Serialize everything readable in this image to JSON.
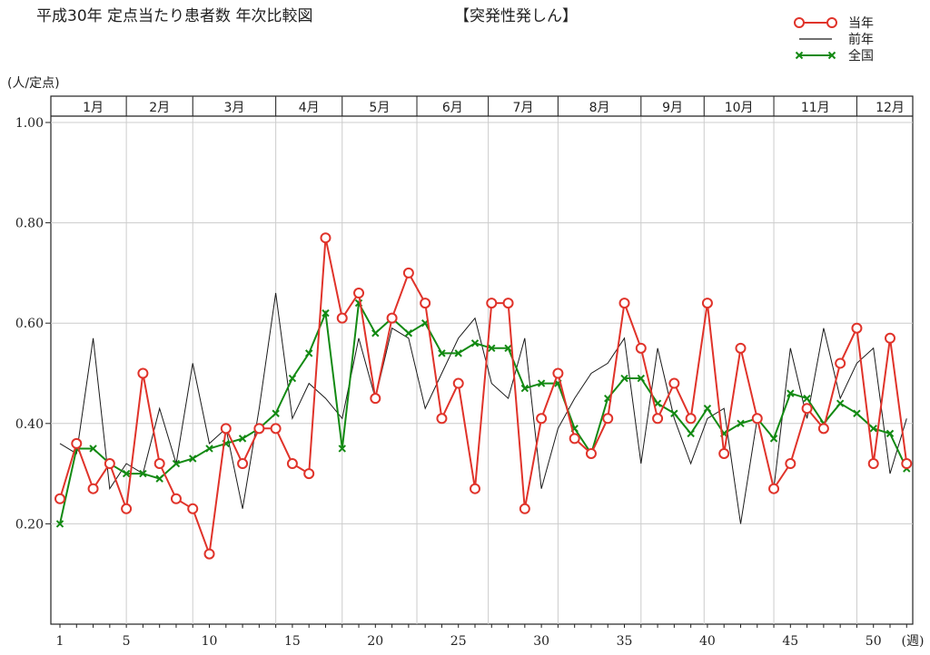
{
  "chart_data": {
    "type": "line",
    "title": "平成30年 定点当たり患者数 年次比較図",
    "subtitle": "【突発性発しん】",
    "ylabel": "(人/定点)",
    "xlabel_suffix": "(週)",
    "ylim": [
      0,
      1.1
    ],
    "xlim": [
      1,
      53
    ],
    "grid": true,
    "legend_position": "top-right",
    "y_ticks": [
      {
        "value": 0.2,
        "label": "0.20"
      },
      {
        "value": 0.4,
        "label": "0.40"
      },
      {
        "value": 0.6,
        "label": "0.60"
      },
      {
        "value": 0.8,
        "label": "0.80"
      },
      {
        "value": 1.0,
        "label": "1.00"
      }
    ],
    "x_ticks": [
      {
        "value": 1,
        "label": "1"
      },
      {
        "value": 5,
        "label": "5"
      },
      {
        "value": 10,
        "label": "10"
      },
      {
        "value": 15,
        "label": "15"
      },
      {
        "value": 20,
        "label": "20"
      },
      {
        "value": 25,
        "label": "25"
      },
      {
        "value": 30,
        "label": "30"
      },
      {
        "value": 35,
        "label": "35"
      },
      {
        "value": 40,
        "label": "40"
      },
      {
        "value": 45,
        "label": "45"
      },
      {
        "value": 50,
        "label": "50"
      }
    ],
    "months": [
      {
        "label": "1月",
        "start": 1,
        "end": 5
      },
      {
        "label": "2月",
        "start": 5,
        "end": 9
      },
      {
        "label": "3月",
        "start": 9,
        "end": 14
      },
      {
        "label": "4月",
        "start": 14,
        "end": 18
      },
      {
        "label": "5月",
        "start": 18,
        "end": 22.5
      },
      {
        "label": "6月",
        "start": 22.5,
        "end": 26.8
      },
      {
        "label": "7月",
        "start": 26.8,
        "end": 31
      },
      {
        "label": "8月",
        "start": 31,
        "end": 36
      },
      {
        "label": "9月",
        "start": 36,
        "end": 39.8
      },
      {
        "label": "10月",
        "start": 39.8,
        "end": 44
      },
      {
        "label": "11月",
        "start": 44,
        "end": 49
      },
      {
        "label": "12月",
        "start": 49,
        "end": 53
      }
    ],
    "series": [
      {
        "name": "当年",
        "color": "#e0332a",
        "marker": "circle",
        "x": [
          1,
          2,
          3,
          4,
          5,
          6,
          7,
          8,
          9,
          10,
          11,
          12,
          13,
          14,
          15,
          16,
          17,
          18,
          19,
          20,
          21,
          22,
          23,
          24,
          25,
          26,
          27,
          28,
          29,
          30,
          31,
          32,
          33,
          34,
          35,
          36,
          37,
          38,
          39,
          40,
          41,
          42,
          43,
          44,
          45,
          46,
          47,
          48,
          49,
          50,
          51,
          52
        ],
        "values": [
          0.25,
          0.36,
          0.27,
          0.32,
          0.23,
          0.5,
          0.32,
          0.25,
          0.23,
          0.14,
          0.39,
          0.32,
          0.39,
          0.39,
          0.32,
          0.3,
          0.77,
          0.61,
          0.66,
          0.45,
          0.61,
          0.7,
          0.64,
          0.41,
          0.48,
          0.27,
          0.64,
          0.64,
          0.23,
          0.41,
          0.5,
          0.37,
          0.34,
          0.41,
          0.64,
          0.55,
          0.41,
          0.48,
          0.41,
          0.64,
          0.34,
          0.55,
          0.41,
          0.27,
          0.32,
          0.43,
          0.39,
          0.52,
          0.59,
          0.32,
          0.57,
          0.32
        ]
      },
      {
        "name": "前年",
        "color": "#1a1a1a",
        "marker": "none",
        "x": [
          1,
          2,
          3,
          4,
          5,
          6,
          7,
          8,
          9,
          10,
          11,
          12,
          13,
          14,
          15,
          16,
          17,
          18,
          19,
          20,
          21,
          22,
          23,
          24,
          25,
          26,
          27,
          28,
          29,
          30,
          31,
          32,
          33,
          34,
          35,
          36,
          37,
          38,
          39,
          40,
          41,
          42,
          43,
          44,
          45,
          46,
          47,
          48,
          49,
          50,
          51,
          52
        ],
        "values": [
          0.36,
          0.34,
          0.57,
          0.27,
          0.32,
          0.3,
          0.43,
          0.32,
          0.52,
          0.36,
          0.39,
          0.23,
          0.43,
          0.66,
          0.41,
          0.48,
          0.45,
          0.41,
          0.57,
          0.45,
          0.59,
          0.57,
          0.43,
          0.5,
          0.57,
          0.61,
          0.48,
          0.45,
          0.57,
          0.27,
          0.39,
          0.45,
          0.5,
          0.52,
          0.57,
          0.32,
          0.55,
          0.41,
          0.32,
          0.41,
          0.43,
          0.2,
          0.41,
          0.27,
          0.55,
          0.41,
          0.59,
          0.45,
          0.52,
          0.55,
          0.3,
          0.41
        ]
      },
      {
        "name": "全国",
        "color": "#138a13",
        "marker": "x",
        "x": [
          1,
          2,
          3,
          4,
          5,
          6,
          7,
          8,
          9,
          10,
          11,
          12,
          13,
          14,
          15,
          16,
          17,
          18,
          19,
          20,
          21,
          22,
          23,
          24,
          25,
          26,
          27,
          28,
          29,
          30,
          31,
          32,
          33,
          34,
          35,
          36,
          37,
          38,
          39,
          40,
          41,
          42,
          43,
          44,
          45,
          46,
          47,
          48,
          49,
          50,
          51,
          52
        ],
        "values": [
          0.2,
          0.35,
          0.35,
          0.32,
          0.3,
          0.3,
          0.29,
          0.32,
          0.33,
          0.35,
          0.36,
          0.37,
          0.39,
          0.42,
          0.49,
          0.54,
          0.62,
          0.35,
          0.64,
          0.58,
          0.61,
          0.58,
          0.6,
          0.54,
          0.54,
          0.56,
          0.55,
          0.55,
          0.47,
          0.48,
          0.48,
          0.39,
          0.34,
          0.45,
          0.49,
          0.49,
          0.44,
          0.42,
          0.38,
          0.43,
          0.38,
          0.4,
          0.41,
          0.37,
          0.46,
          0.45,
          0.4,
          0.44,
          0.42,
          0.39,
          0.38,
          0.31
        ]
      }
    ]
  }
}
